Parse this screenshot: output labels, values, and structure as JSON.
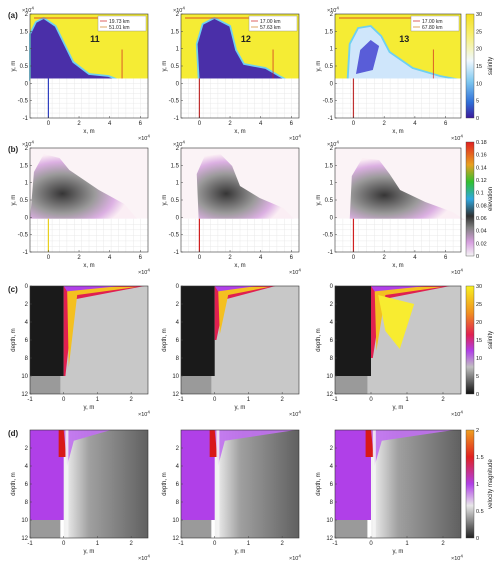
{
  "chart_data": [
    {
      "panel": "(a)",
      "type": "heatmap",
      "variable": "salinity",
      "xlabel": "x, m",
      "ylabel": "y, m",
      "x_exponent": "×10^4",
      "y_exponent": "×10^4",
      "x_ticks": [
        "0",
        "2",
        "4",
        "6"
      ],
      "y_ticks": [
        "-1",
        "-0.5",
        "0",
        "0.5",
        "1",
        "1.5",
        "2"
      ],
      "colorbar": {
        "label": "salinity",
        "range": [
          0,
          30
        ],
        "ticks": [
          "0",
          "5",
          "10",
          "15",
          "20",
          "25",
          "30"
        ]
      },
      "subplots": [
        {
          "tag": "11",
          "legend": [
            "19.73  km",
            "51.01  km"
          ],
          "xlim": [
            -1.2,
            6.5
          ],
          "ylim": [
            -1,
            2
          ]
        },
        {
          "tag": "12",
          "legend": [
            "17.00  km",
            "57.63  km"
          ],
          "xlim": [
            -1.2,
            6.5
          ],
          "ylim": [
            -1,
            2
          ]
        },
        {
          "tag": "13",
          "legend": [
            "17.00  km",
            "67.80  km"
          ],
          "xlim": [
            -1.2,
            7
          ],
          "ylim": [
            -1,
            2
          ]
        }
      ]
    },
    {
      "panel": "(b)",
      "type": "heatmap",
      "variable": "elevation",
      "xlabel": "x, m",
      "ylabel": "y, m",
      "x_exponent": "×10^4",
      "y_exponent": "×10^4",
      "x_ticks": [
        "0",
        "2",
        "4",
        "6"
      ],
      "y_ticks": [
        "-1",
        "-0.5",
        "0",
        "0.5",
        "1",
        "1.5",
        "2"
      ],
      "colorbar": {
        "label": "elevation",
        "range": [
          0,
          0.18
        ],
        "ticks": [
          "0",
          "0.02",
          "0.04",
          "0.06",
          "0.08",
          "0.1",
          "0.12",
          "0.14",
          "0.16",
          "0.18"
        ]
      },
      "subplots": [
        {
          "xlim": [
            -1.2,
            6.5
          ]
        },
        {
          "xlim": [
            -1.2,
            6.5
          ]
        },
        {
          "xlim": [
            -1.2,
            7
          ]
        }
      ]
    },
    {
      "panel": "(c)",
      "type": "heatmap",
      "variable": "salinity",
      "xlabel": "y, m",
      "ylabel": "depth, m",
      "x_exponent": "×10^4",
      "x_ticks": [
        "-1",
        "0",
        "1",
        "2"
      ],
      "y_ticks": [
        "0",
        "2",
        "4",
        "6",
        "8",
        "10",
        "12"
      ],
      "xlim": [
        -1,
        2.5
      ],
      "ylim": [
        12,
        0
      ],
      "colorbar": {
        "label": "salinity",
        "range": [
          0,
          30
        ],
        "ticks": [
          "0",
          "5",
          "10",
          "15",
          "20",
          "25",
          "30"
        ]
      }
    },
    {
      "panel": "(d)",
      "type": "heatmap",
      "variable": "velocity magnitude",
      "xlabel": "y, m",
      "ylabel": "depth, m",
      "x_exponent": "×10^4",
      "x_ticks": [
        "-1",
        "0",
        "1",
        "2"
      ],
      "y_ticks": [
        "2",
        "4",
        "6",
        "8",
        "10",
        "12"
      ],
      "xlim": [
        -1,
        2.5
      ],
      "ylim": [
        12,
        0
      ],
      "colorbar": {
        "label": "velocity magnitude",
        "range": [
          0,
          2
        ],
        "ticks": [
          "0",
          "0.5",
          "1",
          "1.5",
          "2"
        ]
      }
    }
  ],
  "colors": {
    "salinity_high": "#f5ec34",
    "salinity_low": "#4a2fa8",
    "land_black": "#1a1a1a",
    "seabed_gray": "#9a9a9a",
    "background_gray": "#c8c8c8",
    "velocity_purple": "#b040e8",
    "velocity_red": "#d81818"
  }
}
